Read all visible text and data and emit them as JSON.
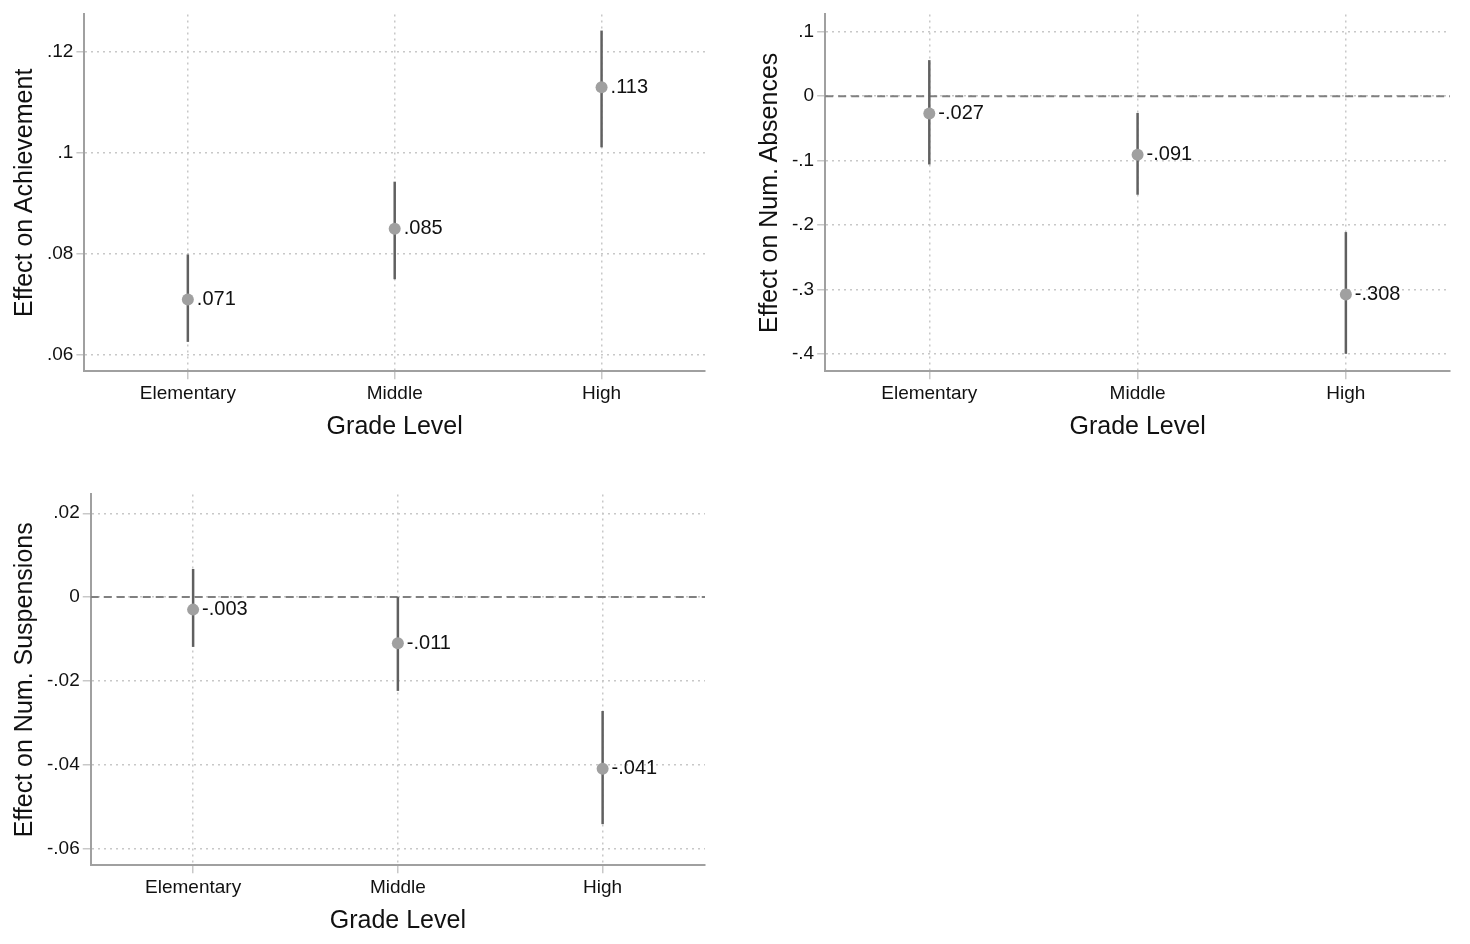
{
  "chart_data": [
    {
      "type": "scatter",
      "categories": [
        "Elementary",
        "Middle",
        "High"
      ],
      "values": [
        0.071,
        0.085,
        0.113
      ],
      "value_labels": [
        ".071",
        ".085",
        ".113"
      ],
      "errors": [
        [
          0.0626,
          0.0799
        ],
        [
          0.075,
          0.0943
        ],
        [
          0.1011,
          0.1242
        ]
      ],
      "color": "#a0a0a0",
      "marker": "circle",
      "xlabel": "Grade Level",
      "ylabel": "Effect on Achievement",
      "ylim": [
        0.0568,
        0.1274
      ],
      "yticks": [
        {
          "value": 0.06,
          "label": ".06"
        },
        {
          "value": 0.08,
          "label": ".08"
        },
        {
          "value": 0.1,
          "label": ".1"
        },
        {
          "value": 0.12,
          "label": ".12"
        }
      ],
      "grid": true
    },
    {
      "type": "scatter",
      "categories": [
        "Elementary",
        "Middle",
        "High"
      ],
      "values": [
        -0.027,
        -0.091,
        -0.308
      ],
      "value_labels": [
        "-.027",
        "-.091",
        "-.308"
      ],
      "errors": [
        [
          -0.106,
          0.056
        ],
        [
          -0.153,
          -0.026
        ],
        [
          -0.4,
          -0.211
        ]
      ],
      "color": "#a0a0a0",
      "marker": "circle",
      "xlabel": "Grade Level",
      "ylabel": "Effect on Num. Absences",
      "ylim": [
        -0.427,
        0.127
      ],
      "yticks": [
        {
          "value": -0.4,
          "label": "-.4"
        },
        {
          "value": -0.3,
          "label": "-.3"
        },
        {
          "value": -0.2,
          "label": "-.2"
        },
        {
          "value": -0.1,
          "label": "-.1"
        },
        0,
        {
          "value": 0.1,
          "label": ".1"
        }
      ],
      "grid": true,
      "ref_lines": [
        {
          "axis": "y",
          "value": 0,
          "line_style": "dashed",
          "color": "#808080"
        }
      ]
    },
    {
      "type": "scatter",
      "categories": [
        "Elementary",
        "Middle",
        "High"
      ],
      "values": [
        -0.003,
        -0.011,
        -0.041
      ],
      "value_labels": [
        "-.003",
        "-.011",
        "-.041"
      ],
      "errors": [
        [
          -0.0119,
          0.0067
        ],
        [
          -0.0224,
          0
        ],
        [
          -0.0542,
          -0.0272
        ]
      ],
      "color": "#a0a0a0",
      "marker": "circle",
      "xlabel": "Grade Level",
      "ylabel": "Effect on Num. Suspensions",
      "ylim": [
        -0.064,
        0.0245
      ],
      "yticks": [
        {
          "value": -0.06,
          "label": "-.06"
        },
        {
          "value": -0.04,
          "label": "-.04"
        },
        {
          "value": -0.02,
          "label": "-.02"
        },
        0,
        {
          "value": 0.02,
          "label": ".02"
        }
      ],
      "grid": true,
      "ref_lines": [
        {
          "axis": "y",
          "value": 0,
          "line_style": "dashed",
          "color": "#808080"
        }
      ]
    }
  ]
}
